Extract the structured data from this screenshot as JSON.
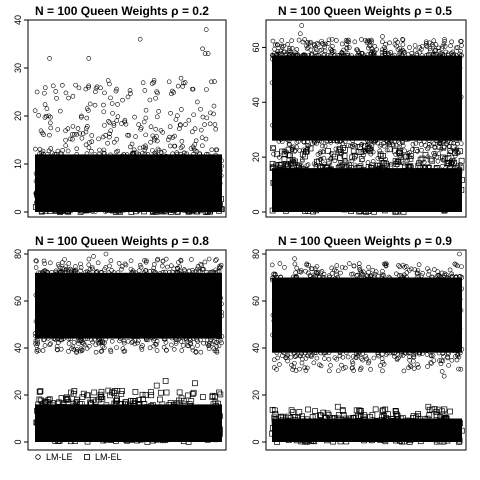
{
  "chart_data": [
    {
      "type": "scatter",
      "title": "N = 100  Queen  Weights  ρ = 0.2",
      "xlabel": "",
      "ylabel": "",
      "ylim": [
        0,
        40
      ],
      "yticks": [
        0,
        10,
        20,
        30,
        40
      ],
      "series": [
        {
          "marker": "circle",
          "band": {
            "lo": 0,
            "hi": 12,
            "n": 1800
          },
          "scatter": {
            "lo": 12,
            "hi": 28,
            "n": 260
          },
          "outliers": [
            33,
            32,
            36,
            34,
            38,
            32,
            33
          ]
        },
        {
          "marker": "square",
          "band": {
            "lo": 0,
            "hi": 3,
            "n": 400
          },
          "scatter": {
            "lo": 3,
            "hi": 5,
            "n": 60
          },
          "outliers": []
        }
      ]
    },
    {
      "type": "scatter",
      "title": "N = 100  Queen  Weights  ρ = 0.5",
      "xlabel": "",
      "ylabel": "",
      "ylim": [
        0,
        70
      ],
      "yticks": [
        0,
        20,
        40,
        60
      ],
      "series": [
        {
          "marker": "circle",
          "band": {
            "lo": 26,
            "hi": 57,
            "n": 1800
          },
          "scatter": {
            "lo": 16,
            "hi": 63,
            "n": 500
          },
          "outliers": [
            65,
            64,
            68
          ]
        },
        {
          "marker": "square",
          "band": {
            "lo": 0,
            "hi": 16,
            "n": 1600
          },
          "scatter": {
            "lo": 16,
            "hi": 24,
            "n": 140
          },
          "outliers": []
        }
      ]
    },
    {
      "type": "scatter",
      "title": "N = 100  Queen  Weights  ρ = 0.8",
      "xlabel": "",
      "ylabel": "",
      "ylim": [
        0,
        80
      ],
      "yticks": [
        0,
        20,
        40,
        60,
        80
      ],
      "series": [
        {
          "marker": "circle",
          "band": {
            "lo": 44,
            "hi": 72,
            "n": 1800
          },
          "scatter": {
            "lo": 38,
            "hi": 78,
            "n": 320
          },
          "outliers": [
            80,
            79
          ]
        },
        {
          "marker": "square",
          "band": {
            "lo": 0,
            "hi": 16,
            "n": 1600
          },
          "scatter": {
            "lo": 16,
            "hi": 22,
            "n": 110
          },
          "outliers": [
            26,
            25,
            24
          ]
        }
      ]
    },
    {
      "type": "scatter",
      "title": "N = 100  Queen  Weights  ρ = 0.9",
      "xlabel": "",
      "ylabel": "",
      "ylim": [
        0,
        80
      ],
      "yticks": [
        0,
        20,
        40,
        60,
        80
      ],
      "series": [
        {
          "marker": "circle",
          "band": {
            "lo": 38,
            "hi": 70,
            "n": 1800
          },
          "scatter": {
            "lo": 30,
            "hi": 76,
            "n": 320
          },
          "outliers": [
            80,
            78,
            28
          ]
        },
        {
          "marker": "square",
          "band": {
            "lo": 0,
            "hi": 10,
            "n": 1500
          },
          "scatter": {
            "lo": 10,
            "hi": 14,
            "n": 90
          },
          "outliers": [
            15,
            15
          ]
        }
      ]
    }
  ],
  "legend": {
    "items": [
      {
        "symbol": "○",
        "marker": "circle",
        "label": "LM-LE"
      },
      {
        "symbol": "□",
        "marker": "square",
        "label": "LM-EL"
      }
    ],
    "position": "bottom-left"
  }
}
